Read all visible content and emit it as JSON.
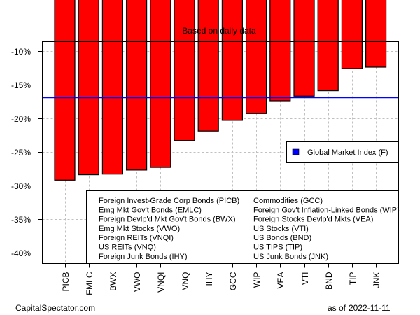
{
  "chart_data": {
    "type": "bar",
    "title": "",
    "subtitle": "Based on daily data",
    "xlabel": "",
    "ylabel": "",
    "ylim": [
      -41.5,
      -8.5
    ],
    "yticks": [
      -10,
      -15,
      -20,
      -25,
      -30,
      -35,
      -40
    ],
    "ytick_labels": [
      "-10%",
      "-15%",
      "-20%",
      "-25%",
      "-30%",
      "-35%",
      "-40%"
    ],
    "grid": true,
    "categories": [
      "PICB",
      "EMLC",
      "BWX",
      "VWO",
      "VNQI",
      "VNQ",
      "IHY",
      "GCC",
      "WIP",
      "VEA",
      "VTI",
      "BND",
      "TIP",
      "JNK"
    ],
    "values": [
      -29.2,
      -28.4,
      -28.3,
      -27.7,
      -27.3,
      -23.3,
      -21.9,
      -20.3,
      -19.3,
      -17.4,
      -16.7,
      -15.9,
      -12.6,
      -12.4
    ],
    "bar_color": "#ff0000",
    "reference_line": {
      "name": "Global Market Index (F)",
      "value": -16.9,
      "color": "#0000ff"
    },
    "legend_reference": {
      "label": "Global Market Index (F)",
      "placement": "right"
    },
    "legend_names": {
      "placement": "bottom-right",
      "left_column": [
        "Foreign Invest-Grade Corp Bonds (PICB)",
        "Emg Mkt Gov't Bonds (EMLC)",
        "Foreign Devlp'd Mkt Gov't Bonds (BWX)",
        "Emg Mkt Stocks (VWO)",
        "Foreign REITs (VNQI)",
        "US REITs (VNQ)",
        "Foreign Junk Bonds (IHY)"
      ],
      "right_column": [
        "Commodities (GCC)",
        "Foreign Gov't Inflation-Linked Bonds (WIP)",
        "Foreign Stocks Devlp'd Mkts (VEA)",
        "US Stocks (VTI)",
        "US Bonds (BND)",
        "US TIPS (TIP)",
        "US Junk Bonds (JNK)"
      ]
    }
  },
  "footer": {
    "source": "CapitalSpectator.com",
    "as_of_label": "as of",
    "date": "2022-11-11"
  }
}
